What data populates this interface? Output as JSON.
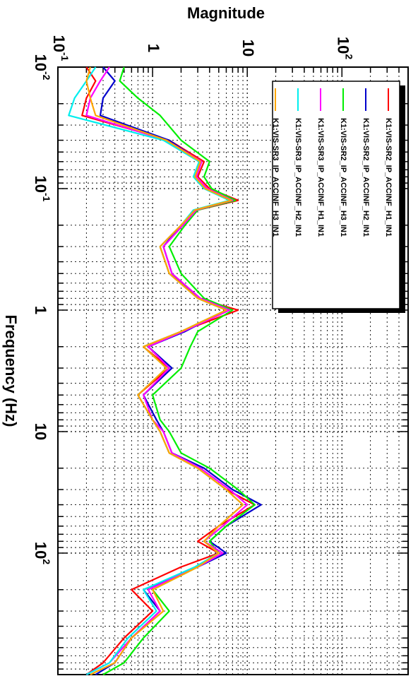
{
  "chart_data": {
    "type": "line",
    "xlabel": "Frequency (Hz)",
    "ylabel": "Magnitude",
    "x_scale": "log",
    "y_scale": "log",
    "xlim": [
      0.01,
      1000
    ],
    "ylim": [
      0.1,
      500
    ],
    "grid": true,
    "orientation": "rotated 90 degrees clockwise",
    "legend_position": "top-right",
    "x_ticks": [
      {
        "value": 0.01,
        "base": "10",
        "exp": "-2"
      },
      {
        "value": 0.1,
        "base": "10",
        "exp": "-1"
      },
      {
        "value": 1,
        "base": "1",
        "exp": ""
      },
      {
        "value": 10,
        "base": "10",
        "exp": ""
      },
      {
        "value": 100,
        "base": "10",
        "exp": "2"
      }
    ],
    "y_ticks": [
      {
        "value": 0.1,
        "base": "10",
        "exp": "-1"
      },
      {
        "value": 1,
        "base": "1",
        "exp": ""
      },
      {
        "value": 10,
        "base": "10",
        "exp": ""
      },
      {
        "value": 100,
        "base": "10",
        "exp": "2"
      }
    ],
    "series": [
      {
        "name": "K1:VIS-SR2_IP_ACCINF_H1_IN1",
        "color": "#ff0000",
        "x": [
          0.01,
          0.013,
          0.018,
          0.025,
          0.04,
          0.06,
          0.08,
          0.1,
          0.125,
          0.15,
          0.2,
          0.3,
          0.5,
          0.8,
          1.0,
          1.5,
          2,
          3,
          5,
          8,
          10,
          15,
          20,
          30,
          40,
          60,
          80,
          100,
          130,
          200,
          300,
          500,
          800,
          1000
        ],
        "y": [
          0.2,
          0.25,
          0.2,
          0.18,
          1.5,
          3.5,
          3.0,
          4.0,
          8.0,
          3.0,
          2.0,
          1.2,
          1.5,
          3.0,
          8.0,
          2.0,
          0.8,
          1.5,
          0.7,
          1.0,
          1.2,
          1.5,
          3.0,
          6.0,
          12.0,
          5.0,
          3.0,
          5.0,
          2.0,
          0.6,
          1.0,
          0.5,
          0.3,
          0.2
        ]
      },
      {
        "name": "K1:VIS-SR2_IP_ACCINF_H2_IN1",
        "color": "#0000cc",
        "x": [
          0.01,
          0.013,
          0.018,
          0.025,
          0.04,
          0.06,
          0.08,
          0.1,
          0.125,
          0.15,
          0.2,
          0.3,
          0.5,
          0.8,
          1.0,
          1.5,
          2,
          3,
          5,
          8,
          10,
          15,
          20,
          30,
          40,
          60,
          80,
          100,
          130,
          200,
          300,
          500,
          800,
          1000
        ],
        "y": [
          0.3,
          0.4,
          0.3,
          0.28,
          1.5,
          3.2,
          2.8,
          3.6,
          7.0,
          2.8,
          2.0,
          1.3,
          1.6,
          3.0,
          6.0,
          2.2,
          0.9,
          1.6,
          0.8,
          1.1,
          1.3,
          1.6,
          3.5,
          7.0,
          14.0,
          6.0,
          4.0,
          6.0,
          3.0,
          0.8,
          1.2,
          0.6,
          0.4,
          0.25
        ]
      },
      {
        "name": "K1:VIS-SR2_IP_ACCINF_H3_IN1",
        "color": "#00ee00",
        "x": [
          0.01,
          0.013,
          0.018,
          0.025,
          0.04,
          0.06,
          0.08,
          0.1,
          0.125,
          0.15,
          0.2,
          0.3,
          0.5,
          0.8,
          1.0,
          1.5,
          2,
          3,
          5,
          8,
          10,
          15,
          20,
          30,
          40,
          60,
          80,
          100,
          130,
          200,
          300,
          500,
          800,
          1000
        ],
        "y": [
          0.5,
          0.45,
          0.7,
          1.2,
          2.0,
          4.0,
          3.5,
          4.2,
          7.5,
          3.0,
          2.2,
          1.5,
          2.0,
          3.5,
          7.0,
          3.0,
          2.5,
          2.0,
          1.0,
          1.2,
          1.5,
          2.0,
          4.0,
          8.0,
          12.0,
          6.0,
          4.0,
          5.0,
          3.0,
          1.0,
          1.5,
          0.8,
          0.5,
          0.3
        ]
      },
      {
        "name": "K1:VIS-SR3_IP_ACCINF_H1_IN1",
        "color": "#ff00ff",
        "x": [
          0.01,
          0.013,
          0.018,
          0.025,
          0.04,
          0.06,
          0.08,
          0.1,
          0.125,
          0.15,
          0.2,
          0.3,
          0.5,
          0.8,
          1.0,
          1.5,
          2,
          3,
          5,
          8,
          10,
          15,
          20,
          30,
          40,
          60,
          80,
          100,
          130,
          200,
          300,
          500,
          800,
          1000
        ],
        "y": [
          0.35,
          0.28,
          0.22,
          0.2,
          1.4,
          3.3,
          2.9,
          3.8,
          7.0,
          2.9,
          2.1,
          1.3,
          1.6,
          3.2,
          6.5,
          2.1,
          0.9,
          1.5,
          0.8,
          1.0,
          1.3,
          1.6,
          3.2,
          6.5,
          10.0,
          5.5,
          3.5,
          5.5,
          3.0,
          0.9,
          1.2,
          0.6,
          0.35,
          0.2
        ]
      },
      {
        "name": "K1:VIS-SR3_IP_ACCINF_H2_IN1",
        "color": "#00eeee",
        "x": [
          0.01,
          0.013,
          0.018,
          0.025,
          0.04,
          0.06,
          0.08,
          0.1,
          0.125,
          0.15,
          0.2,
          0.3,
          0.5,
          0.8,
          1.0,
          1.5,
          2,
          3,
          5,
          8,
          10,
          15,
          20,
          30,
          40,
          60,
          80,
          100,
          130,
          200,
          300,
          500,
          800,
          1000
        ],
        "y": [
          0.25,
          0.2,
          0.15,
          0.13,
          1.3,
          3.1,
          2.7,
          3.5,
          6.5,
          2.7,
          2.0,
          1.2,
          1.5,
          3.0,
          6.0,
          2.0,
          0.8,
          1.4,
          0.7,
          1.0,
          1.2,
          1.5,
          3.0,
          6.0,
          9.0,
          5.0,
          3.5,
          5.0,
          2.8,
          0.8,
          1.1,
          0.55,
          0.35,
          0.2
        ]
      },
      {
        "name": "K1:VIS-SR3_IP_ACCINF_H3_IN1",
        "color": "#ffa500",
        "x": [
          0.01,
          0.013,
          0.018,
          0.025,
          0.04,
          0.06,
          0.08,
          0.1,
          0.125,
          0.15,
          0.2,
          0.3,
          0.5,
          0.8,
          1.0,
          1.5,
          2,
          3,
          5,
          8,
          10,
          15,
          20,
          30,
          40,
          60,
          80,
          100,
          130,
          200,
          300,
          500,
          800,
          1000
        ],
        "y": [
          0.22,
          0.2,
          0.22,
          0.25,
          1.4,
          3.2,
          2.8,
          3.6,
          6.8,
          2.8,
          2.0,
          1.2,
          1.5,
          3.0,
          6.0,
          2.0,
          0.8,
          1.4,
          0.7,
          1.0,
          1.2,
          1.5,
          3.0,
          6.0,
          9.0,
          5.0,
          3.5,
          5.0,
          3.0,
          1.0,
          1.3,
          0.6,
          0.4,
          0.22
        ]
      }
    ]
  }
}
